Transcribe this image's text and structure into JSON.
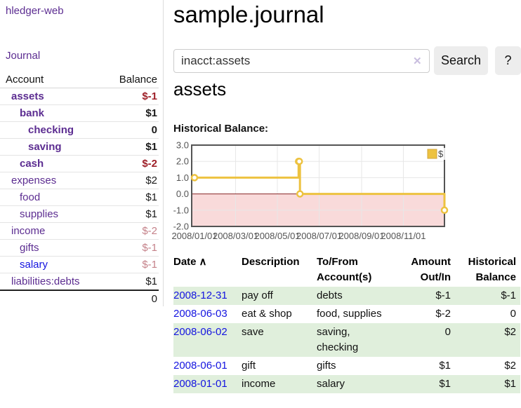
{
  "sidebar": {
    "brand": "hledger-web",
    "nav_journal": "Journal",
    "accounts_table": {
      "headers": [
        "Account",
        "Balance"
      ],
      "rows": [
        {
          "account": "assets",
          "balance": "$-1",
          "depth": 1,
          "in_account_query": true,
          "balance_tone": "negative",
          "link_color": "purple"
        },
        {
          "account": "bank",
          "balance": "$1",
          "depth": 2,
          "in_account_query": true,
          "balance_tone": "normal",
          "link_color": "purple"
        },
        {
          "account": "checking",
          "balance": "0",
          "depth": 3,
          "in_account_query": true,
          "balance_tone": "normal",
          "link_color": "purple"
        },
        {
          "account": "saving",
          "balance": "$1",
          "depth": 3,
          "in_account_query": true,
          "balance_tone": "normal",
          "link_color": "purple"
        },
        {
          "account": "cash",
          "balance": "$-2",
          "depth": 2,
          "in_account_query": true,
          "balance_tone": "negative",
          "link_color": "purple"
        },
        {
          "account": "expenses",
          "balance": "$2",
          "depth": 1,
          "in_account_query": false,
          "balance_tone": "normal",
          "link_color": "purple"
        },
        {
          "account": "food",
          "balance": "$1",
          "depth": 2,
          "in_account_query": false,
          "balance_tone": "normal",
          "link_color": "purple"
        },
        {
          "account": "supplies",
          "balance": "$1",
          "depth": 2,
          "in_account_query": false,
          "balance_tone": "normal",
          "link_color": "purple"
        },
        {
          "account": "income",
          "balance": "$-2",
          "depth": 1,
          "in_account_query": false,
          "balance_tone": "negative-soft",
          "link_color": "purple"
        },
        {
          "account": "gifts",
          "balance": "$-1",
          "depth": 2,
          "in_account_query": false,
          "balance_tone": "negative-soft",
          "link_color": "purple"
        },
        {
          "account": "salary",
          "balance": "$-1",
          "depth": 2,
          "in_account_query": false,
          "balance_tone": "negative-soft",
          "link_color": "blue"
        },
        {
          "account": "liabilities:debts",
          "balance": "$1",
          "depth": 1,
          "in_account_query": false,
          "balance_tone": "normal",
          "link_color": "purple"
        }
      ],
      "total": "0"
    }
  },
  "main": {
    "title": "sample.journal",
    "search": {
      "value": "inacct:assets",
      "clear_icon": "✕",
      "button_label": "Search",
      "help_label": "?"
    },
    "account_heading": "assets",
    "chart": {
      "type": "step-line",
      "title": "Historical Balance:",
      "x_range": [
        "2008-01-01",
        "2008-12-31"
      ],
      "ylim": [
        -2,
        3
      ],
      "y_ticks": [
        3,
        2,
        1,
        0,
        -1,
        -2
      ],
      "x_ticks": [
        "2008/01/01",
        "2008/03/01",
        "2008/05/01",
        "2008/07/01",
        "2008/09/01",
        "2008/11/01"
      ],
      "series": [
        {
          "name": "$",
          "color": "#edc240",
          "points": [
            [
              "2008-01-01",
              1
            ],
            [
              "2008-06-01",
              2
            ],
            [
              "2008-06-02",
              2
            ],
            [
              "2008-06-03",
              0
            ],
            [
              "2008-12-31",
              -1
            ]
          ]
        }
      ],
      "legend_position": "top-right",
      "negative_region_color": "#f9dada",
      "zero_line_color": "#882424",
      "grid_color": "#e7e7e7",
      "border_color": "#545454"
    },
    "register_table": {
      "headers": [
        "Date",
        "Description",
        "To/From Account(s)",
        "Amount Out/In",
        "Historical Balance"
      ],
      "sort_icon": "∧",
      "rows": [
        {
          "date": "2008-12-31",
          "description": "pay off",
          "accounts": "debts",
          "amount": "$-1",
          "balance": "$-1",
          "shaded": true
        },
        {
          "date": "2008-06-03",
          "description": "eat & shop",
          "accounts": "food, supplies",
          "amount": "$-2",
          "balance": "0",
          "shaded": false
        },
        {
          "date": "2008-06-02",
          "description": "save",
          "accounts": "saving, checking",
          "amount": "0",
          "balance": "$2",
          "shaded": true
        },
        {
          "date": "2008-06-01",
          "description": "gift",
          "accounts": "gifts",
          "amount": "$1",
          "balance": "$2",
          "shaded": false
        },
        {
          "date": "2008-01-01",
          "description": "income",
          "accounts": "salary",
          "amount": "$1",
          "balance": "$1",
          "shaded": true
        }
      ]
    }
  }
}
